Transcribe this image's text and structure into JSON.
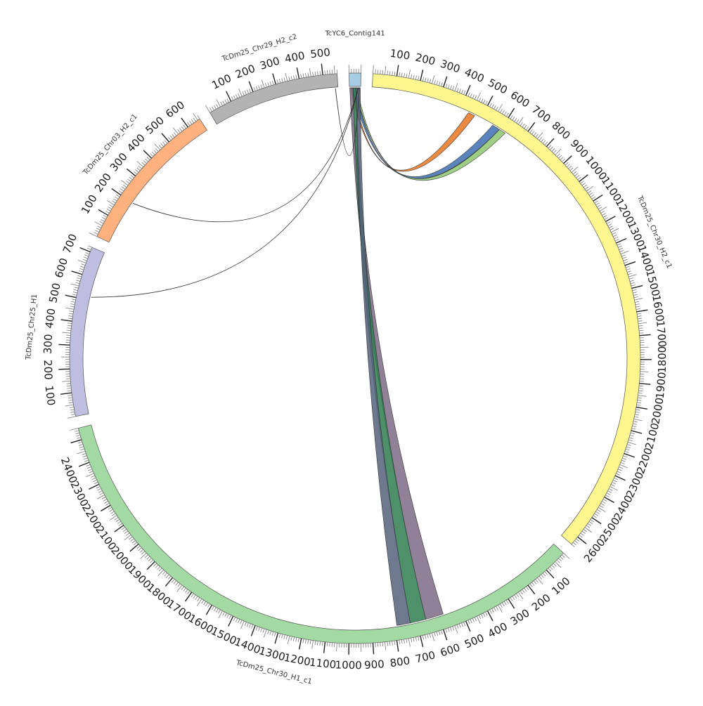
{
  "chart_data": {
    "type": "chord",
    "segments": [
      {
        "name": "TcYC6_Contig141",
        "length": 50,
        "color": "#a6cde3",
        "label_ticks": [],
        "minor_step": 10
      },
      {
        "name": "TcDm25_Chr30_H2_c1",
        "length": 2640,
        "color": "#fff68f",
        "label_ticks": [
          100,
          200,
          300,
          400,
          500,
          600,
          700,
          800,
          900,
          1000,
          1100,
          1200,
          1300,
          1400,
          1500,
          1600,
          1700,
          1800,
          1900,
          2000,
          2100,
          2200,
          2300,
          2400,
          2500,
          2600
        ],
        "minor_step": 10
      },
      {
        "name": "TcDm25_Chr30_H1_c1",
        "length": 2550,
        "color": "#a3d9a2",
        "label_ticks": [
          100,
          200,
          300,
          400,
          500,
          600,
          700,
          800,
          900,
          1000,
          1100,
          1200,
          1300,
          1400,
          1500,
          1600,
          1700,
          1800,
          1900,
          2000,
          2100,
          2200,
          2300,
          2400
        ],
        "minor_step": 10
      },
      {
        "name": "TcDm25_Chr25_H1",
        "length": 720,
        "color": "#bfbde0",
        "label_ticks": [
          100,
          200,
          300,
          400,
          500,
          600,
          700
        ],
        "minor_step": 10
      },
      {
        "name": "TcDm25_Chr03_H2_c1",
        "length": 660,
        "color": "#fdb17f",
        "label_ticks": [
          100,
          200,
          300,
          400,
          500,
          600
        ],
        "minor_step": 10
      },
      {
        "name": "TcDm25_Chr29_H2_c2",
        "length": 560,
        "color": "#b3b3b3",
        "label_ticks": [
          100,
          200,
          300,
          400,
          500
        ],
        "minor_step": 10
      }
    ],
    "links": [
      {
        "from": {
          "segment": "TcYC6_Contig141",
          "start": 5,
          "end": 14
        },
        "to": {
          "segment": "TcDm25_Chr30_H2_c1",
          "start": 440,
          "end": 470
        },
        "color": "#e8761e"
      },
      {
        "from": {
          "segment": "TcYC6_Contig141",
          "start": 14,
          "end": 26
        },
        "to": {
          "segment": "TcDm25_Chr30_H2_c1",
          "start": 560,
          "end": 595
        },
        "color": "#3e6fb0"
      },
      {
        "from": {
          "segment": "TcYC6_Contig141",
          "start": 26,
          "end": 34
        },
        "to": {
          "segment": "TcDm25_Chr30_H2_c1",
          "start": 595,
          "end": 625
        },
        "color": "#8cc56f"
      },
      {
        "from": {
          "segment": "TcYC6_Contig141",
          "start": 2,
          "end": 16
        },
        "to": {
          "segment": "TcDm25_Chr30_H1_c1",
          "start": 580,
          "end": 660
        },
        "color": "#7d6b86"
      },
      {
        "from": {
          "segment": "TcYC6_Contig141",
          "start": 16,
          "end": 30
        },
        "to": {
          "segment": "TcDm25_Chr30_H1_c1",
          "start": 660,
          "end": 730
        },
        "color": "#2e7d4f"
      },
      {
        "from": {
          "segment": "TcYC6_Contig141",
          "start": 30,
          "end": 48
        },
        "to": {
          "segment": "TcDm25_Chr30_H1_c1",
          "start": 730,
          "end": 790
        },
        "color": "#55627d"
      },
      {
        "from": {
          "segment": "TcYC6_Contig141",
          "start": 38,
          "end": 39
        },
        "to": {
          "segment": "TcDm25_Chr03_H2_c1",
          "start": 200,
          "end": 201
        },
        "color": "#8b1a1a"
      },
      {
        "from": {
          "segment": "TcYC6_Contig141",
          "start": 40,
          "end": 41
        },
        "to": {
          "segment": "TcDm25_Chr25_H1",
          "start": 515,
          "end": 516
        },
        "color": "#555555"
      },
      {
        "from": {
          "segment": "TcYC6_Contig141",
          "start": 44,
          "end": 45
        },
        "to": {
          "segment": "TcDm25_Chr29_H2_c2",
          "start": 548,
          "end": 549
        },
        "color": "#555555"
      }
    ]
  }
}
